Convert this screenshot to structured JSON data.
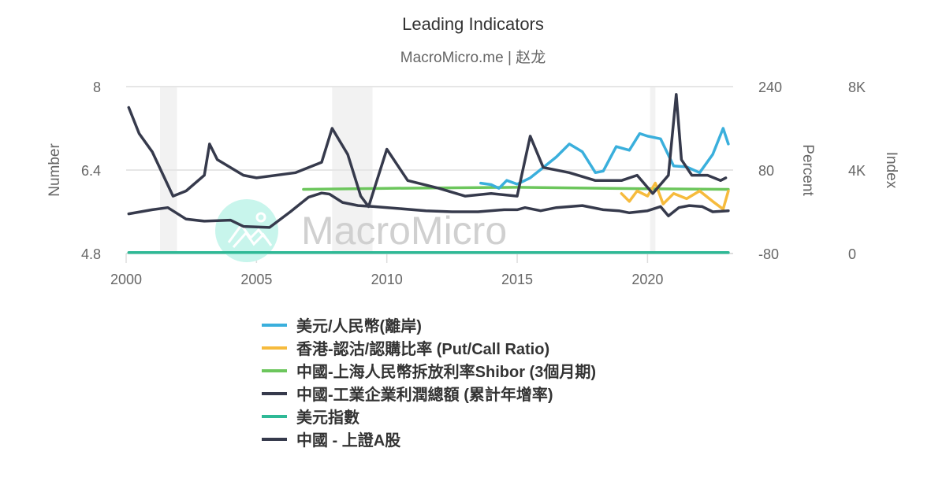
{
  "header": {
    "title": "Leading Indicators",
    "subtitle": "MacroMicro.me | 赵龙"
  },
  "watermark": {
    "text": "MacroMicro",
    "circle_color": "#c8f5ec"
  },
  "axes": {
    "left": {
      "title": "Number",
      "ticks": [
        "8",
        "6.4",
        "4.8"
      ]
    },
    "right1": {
      "title": "Percent",
      "ticks": [
        "240",
        "80",
        "-80"
      ]
    },
    "right2": {
      "title": "Index",
      "ticks": [
        "8K",
        "4K",
        "0"
      ]
    },
    "x": {
      "ticks": [
        "2000",
        "2005",
        "2010",
        "2015",
        "2020"
      ]
    }
  },
  "legend": [
    {
      "label": "美元/人民幣(離岸)",
      "color": "#3aafdc"
    },
    {
      "label": "香港-認沽/認購比率 (Put/Call Ratio)",
      "color": "#f6bb3d"
    },
    {
      "label": "中國-上海人民幣拆放利率Shibor (3個月期)",
      "color": "#6cc65c"
    },
    {
      "label": "中國-工業企業利潤總額 (累計年增率)",
      "color": "#363a4c"
    },
    {
      "label": "美元指數",
      "color": "#2fb996"
    },
    {
      "label": "中國 - 上證A股",
      "color": "#363a4c"
    }
  ],
  "chart_data": {
    "type": "line",
    "title": "Leading Indicators",
    "subtitle": "MacroMicro.me | 赵龙",
    "xlabel": "",
    "x_range": [
      2000,
      2023.3
    ],
    "x_ticks": [
      2000,
      2005,
      2010,
      2015,
      2020
    ],
    "y_axes": [
      {
        "name": "Number",
        "range": [
          4.8,
          8
        ],
        "ticks": [
          4.8,
          6.4,
          8
        ]
      },
      {
        "name": "Percent",
        "range": [
          -80,
          240
        ],
        "ticks": [
          -80,
          80,
          240
        ]
      },
      {
        "name": "Index",
        "range": [
          0,
          8000
        ],
        "ticks": [
          0,
          4000,
          8000
        ]
      }
    ],
    "grid": true,
    "legend_position": "bottom",
    "recession_bands": [
      [
        2001.3,
        2001.95
      ],
      [
        2007.9,
        2009.45
      ],
      [
        2020.1,
        2020.3
      ]
    ],
    "series": [
      {
        "name": "美元/人民幣(離岸)",
        "axis": "Number",
        "color": "#3aafdc",
        "x": [
          2013.6,
          2014.0,
          2014.3,
          2014.6,
          2015.0,
          2015.5,
          2016.0,
          2016.5,
          2017.0,
          2017.5,
          2018.0,
          2018.3,
          2018.8,
          2019.3,
          2019.7,
          2020.0,
          2020.5,
          2021.0,
          2021.5,
          2022.0,
          2022.5,
          2022.9,
          2023.1
        ],
        "values": [
          6.15,
          6.12,
          6.05,
          6.2,
          6.13,
          6.25,
          6.45,
          6.65,
          6.9,
          6.75,
          6.35,
          6.38,
          6.85,
          6.78,
          7.1,
          7.05,
          7.0,
          6.48,
          6.46,
          6.35,
          6.7,
          7.2,
          6.9
        ]
      },
      {
        "name": "香港-認沽/認購比率 (Put/Call Ratio)",
        "axis": "Percent",
        "color": "#f6bb3d",
        "x": [
          2019.0,
          2019.3,
          2019.6,
          2020.0,
          2020.3,
          2020.6,
          2021.0,
          2021.5,
          2022.0,
          2022.5,
          2022.9,
          2023.1
        ],
        "values": [
          35,
          20,
          40,
          30,
          55,
          15,
          35,
          25,
          40,
          20,
          5,
          40
        ]
      },
      {
        "name": "中國-上海人民幣拆放利率Shibor (3個月期)",
        "axis": "Percent",
        "color": "#6cc65c",
        "x": [
          2006.8,
          2010,
          2015,
          2020,
          2023.1
        ],
        "values": [
          43,
          45,
          47,
          44,
          43
        ]
      },
      {
        "name": "中國-工業企業利潤總額 (累計年增率)",
        "axis": "Percent",
        "color": "#363a4c",
        "x": [
          2000.1,
          2000.5,
          2001.0,
          2001.8,
          2002.3,
          2003.0,
          2003.2,
          2003.5,
          2004.5,
          2005.0,
          2006.5,
          2007.5,
          2007.9,
          2008.5,
          2009.0,
          2009.3,
          2010.0,
          2010.8,
          2012.0,
          2013.0,
          2014.0,
          2015.0,
          2015.5,
          2016.0,
          2017.0,
          2018.0,
          2019.0,
          2019.6,
          2020.2,
          2020.8,
          2021.1,
          2021.3,
          2021.7,
          2022.3,
          2022.8,
          2023.0
        ],
        "values": [
          200,
          150,
          115,
          30,
          40,
          70,
          130,
          100,
          70,
          65,
          75,
          95,
          160,
          110,
          30,
          10,
          120,
          60,
          45,
          30,
          35,
          30,
          145,
          85,
          75,
          60,
          60,
          70,
          35,
          70,
          225,
          100,
          70,
          70,
          60,
          65
        ]
      },
      {
        "name": "美元指數",
        "axis": "Number",
        "color": "#2fb996",
        "x": [
          2000.1,
          2023.1
        ],
        "values": [
          4.82,
          4.82
        ]
      },
      {
        "name": "中國 - 上證A股",
        "axis": "Index",
        "color": "#363a4c",
        "x": [
          2000.1,
          2001.0,
          2001.6,
          2002.3,
          2003.0,
          2004.0,
          2004.5,
          2005.5,
          2006.3,
          2007.0,
          2007.5,
          2007.8,
          2008.3,
          2008.9,
          2009.5,
          2010.5,
          2011.5,
          2012.5,
          2013.5,
          2014.5,
          2015.0,
          2015.3,
          2015.9,
          2016.5,
          2017.5,
          2018.3,
          2018.9,
          2019.3,
          2020.0,
          2020.5,
          2020.8,
          2021.2,
          2021.6,
          2022.1,
          2022.5,
          2023.1
        ],
        "values": [
          1900,
          2100,
          2200,
          1650,
          1550,
          1600,
          1300,
          1250,
          2000,
          2700,
          2900,
          2850,
          2450,
          2300,
          2250,
          2150,
          2050,
          2000,
          2000,
          2100,
          2100,
          2200,
          2050,
          2200,
          2300,
          2100,
          2050,
          1950,
          2050,
          2250,
          1800,
          2200,
          2300,
          2250,
          2000,
          2050
        ]
      }
    ]
  }
}
